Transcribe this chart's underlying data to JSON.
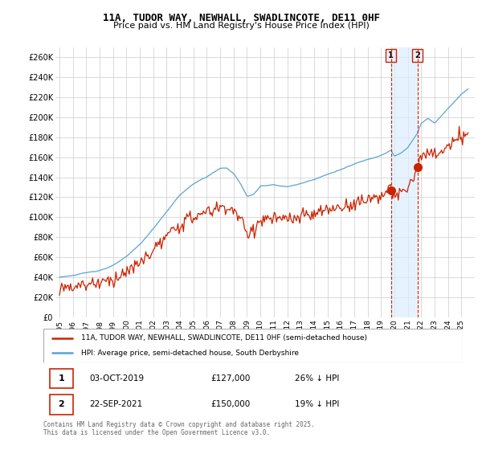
{
  "title1": "11A, TUDOR WAY, NEWHALL, SWADLINCOTE, DE11 0HF",
  "title2": "Price paid vs. HM Land Registry's House Price Index (HPI)",
  "ylabel_ticks": [
    "£0",
    "£20K",
    "£40K",
    "£60K",
    "£80K",
    "£100K",
    "£120K",
    "£140K",
    "£160K",
    "£180K",
    "£200K",
    "£220K",
    "£240K",
    "£260K"
  ],
  "ytick_vals": [
    0,
    20000,
    40000,
    60000,
    80000,
    100000,
    120000,
    140000,
    160000,
    180000,
    200000,
    220000,
    240000,
    260000
  ],
  "ylim": [
    0,
    270000
  ],
  "legend_line1": "11A, TUDOR WAY, NEWHALL, SWADLINCOTE, DE11 0HF (semi-detached house)",
  "legend_line2": "HPI: Average price, semi-detached house, South Derbyshire",
  "sale1_date": "03-OCT-2019",
  "sale1_price": 127000,
  "sale1_pct": "26% ↓ HPI",
  "sale1_year": 2019.75,
  "sale2_date": "22-SEP-2021",
  "sale2_price": 150000,
  "sale2_pct": "19% ↓ HPI",
  "sale2_year": 2021.72,
  "hpi_color": "#5ba3d0",
  "price_color": "#cc2200",
  "vline_color": "#cc2200",
  "shade_color": "#dceeff",
  "footer": "Contains HM Land Registry data © Crown copyright and database right 2025.\nThis data is licensed under the Open Government Licence v3.0.",
  "background_color": "#ffffff",
  "grid_color": "#cccccc"
}
